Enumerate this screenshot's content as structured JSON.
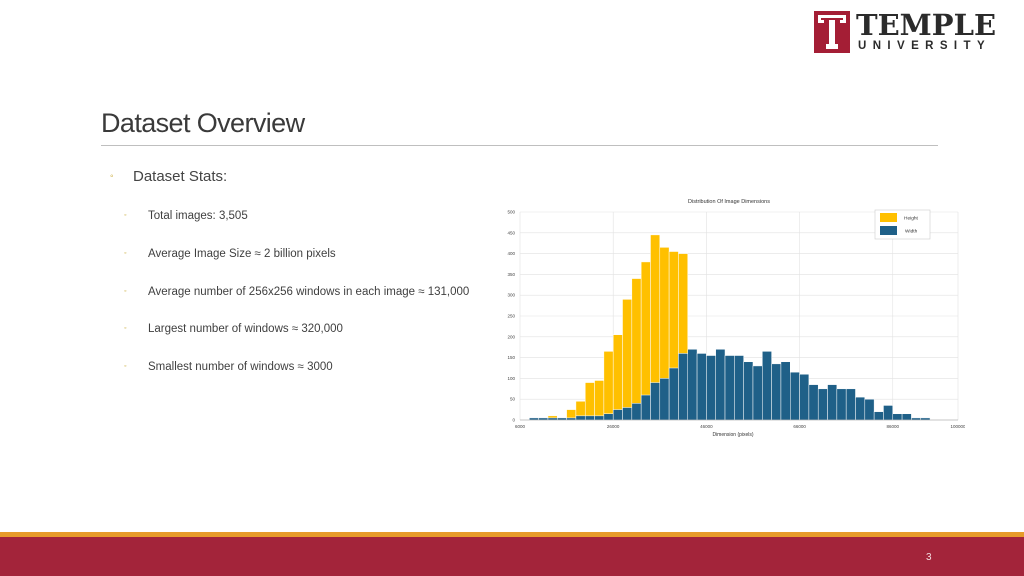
{
  "logo": {
    "word1": "TEMPLE",
    "word2": "UNIVERSITY"
  },
  "slide": {
    "title": "Dataset Overview",
    "bullet": "Dataset Stats:",
    "items": [
      "Total images: 3,505",
      "Average Image Size ≈ 2 billion pixels",
      "Average number of 256x256 windows in each image ≈ 131,000",
      "Largest number of windows ≈ 320,000",
      "Smallest number of windows ≈ 3000"
    ],
    "page_number": "3"
  },
  "colors": {
    "accent": "#a3243a",
    "gold": "#e79b2a",
    "height": "#ffc000",
    "width": "#1f6088"
  },
  "chart_data": {
    "type": "bar",
    "title": "Distribution Of Image Dimensions",
    "xlabel": "Dimension (pixels)",
    "ylabel": "",
    "xlim": [
      6000,
      100000
    ],
    "ylim": [
      0,
      500
    ],
    "xticks": [
      "6000",
      "26000",
      "46000",
      "66000",
      "86000",
      "100000"
    ],
    "yticks": [
      "0",
      "50",
      "100",
      "150",
      "200",
      "250",
      "300",
      "350",
      "400",
      "450",
      "500"
    ],
    "legend": "top-right",
    "grid": true,
    "bin_start": 8000,
    "bin_width": 2000,
    "series": [
      {
        "name": "Height",
        "color": "#ffc000",
        "values": [
          0,
          0,
          10,
          5,
          25,
          45,
          90,
          95,
          165,
          205,
          290,
          340,
          380,
          445,
          415,
          405,
          400,
          0,
          0,
          0,
          0,
          0,
          0,
          0,
          0,
          0,
          0,
          0,
          0,
          0,
          0,
          0,
          0,
          0,
          0,
          0,
          0,
          0,
          0,
          0,
          0,
          0,
          0,
          0,
          0,
          0,
          0
        ]
      },
      {
        "name": "Width",
        "color": "#1f6088",
        "values": [
          5,
          5,
          5,
          5,
          5,
          10,
          10,
          10,
          15,
          25,
          30,
          40,
          60,
          90,
          100,
          125,
          160,
          170,
          160,
          155,
          170,
          155,
          155,
          140,
          130,
          165,
          135,
          140,
          115,
          110,
          85,
          75,
          85,
          75,
          75,
          55,
          50,
          20,
          35,
          15,
          15,
          5,
          5,
          0,
          0,
          0,
          0
        ]
      }
    ]
  }
}
